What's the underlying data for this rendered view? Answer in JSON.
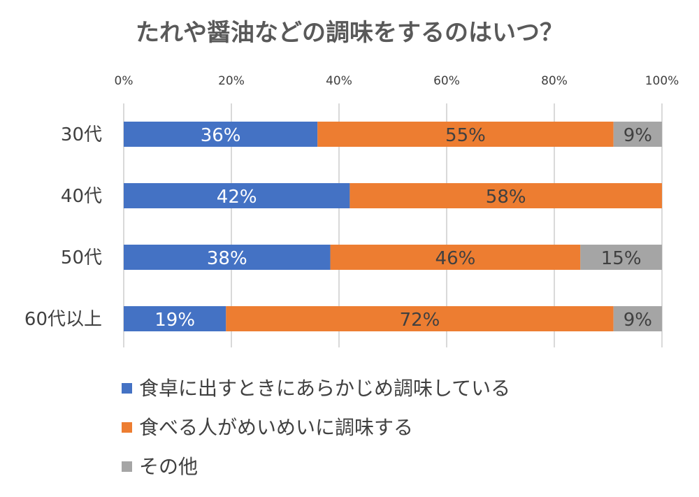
{
  "chart_data": {
    "type": "bar",
    "orientation": "horizontal",
    "stacked": true,
    "title": "たれや醤油などの調味をするのはいつ？",
    "categories": [
      "30代",
      "40代",
      "50代",
      "60代以上"
    ],
    "series": [
      {
        "name": "食卓に出すときにあらかじめ調味している",
        "values": [
          36,
          42,
          38,
          19
        ],
        "labels": [
          "36%",
          "42%",
          "38%",
          "19%"
        ],
        "color": "#4472C4",
        "label_color": "#ffffff"
      },
      {
        "name": "食べる人がめいめいに調味する",
        "values": [
          55,
          58,
          46,
          72
        ],
        "labels": [
          "55%",
          "58%",
          "46%",
          "72%"
        ],
        "color": "#ED7D31",
        "label_color": "#404040"
      },
      {
        "name": "その他",
        "values": [
          9,
          0,
          15,
          9
        ],
        "labels": [
          "9%",
          "",
          "15%",
          "9%"
        ],
        "color": "#A5A5A5",
        "label_color": "#404040"
      }
    ],
    "xlim": [
      0,
      100
    ],
    "x_ticks": [
      "0%",
      "20%",
      "40%",
      "60%",
      "80%",
      "100%"
    ],
    "x_axis_position": "top",
    "grid": true,
    "legend_position": "bottom"
  }
}
